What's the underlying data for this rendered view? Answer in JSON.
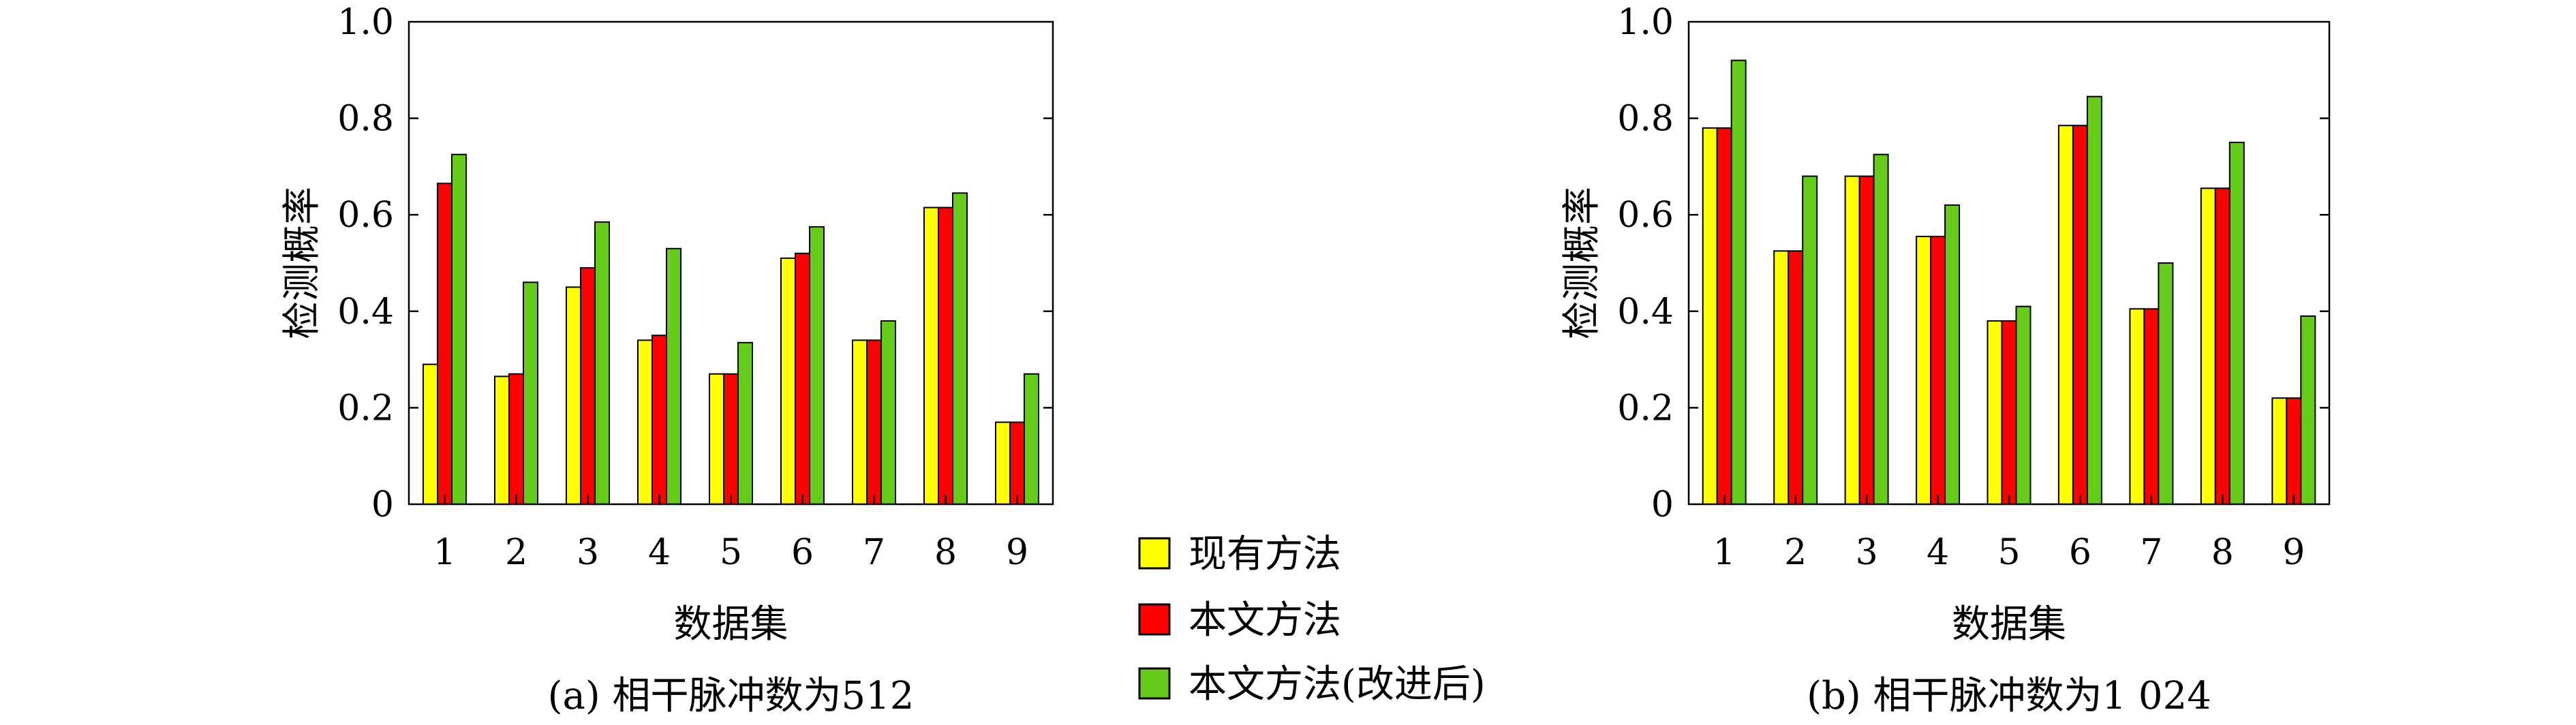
{
  "legend": [
    {
      "label": "现有方法",
      "color": "#ffff00"
    },
    {
      "label": "本文方法",
      "color": "#ff0000"
    },
    {
      "label": "本文方法(改进后)",
      "color": "#66cc1a"
    }
  ],
  "chart_data": [
    {
      "type": "bar",
      "title": "(a) 相干脉冲数为512",
      "xlabel": "数据集",
      "ylabel": "检测概率",
      "categories": [
        "1",
        "2",
        "3",
        "4",
        "5",
        "6",
        "7",
        "8",
        "9"
      ],
      "ylim": [
        0,
        1.0
      ],
      "yticks": [
        "0",
        "0.2",
        "0.4",
        "0.6",
        "0.8",
        "1.0"
      ],
      "series": [
        {
          "name": "现有方法",
          "values": [
            0.29,
            0.265,
            0.45,
            0.34,
            0.27,
            0.51,
            0.34,
            0.615,
            0.17
          ]
        },
        {
          "name": "本文方法",
          "values": [
            0.665,
            0.27,
            0.49,
            0.35,
            0.27,
            0.52,
            0.34,
            0.615,
            0.17
          ]
        },
        {
          "name": "本文方法(改进后)",
          "values": [
            0.725,
            0.46,
            0.585,
            0.53,
            0.335,
            0.575,
            0.38,
            0.645,
            0.27
          ]
        }
      ]
    },
    {
      "type": "bar",
      "title": "(b) 相干脉冲数为1 024",
      "xlabel": "数据集",
      "ylabel": "检测概率",
      "categories": [
        "1",
        "2",
        "3",
        "4",
        "5",
        "6",
        "7",
        "8",
        "9"
      ],
      "ylim": [
        0,
        1.0
      ],
      "yticks": [
        "0",
        "0.2",
        "0.4",
        "0.6",
        "0.8",
        "1.0"
      ],
      "series": [
        {
          "name": "现有方法",
          "values": [
            0.78,
            0.525,
            0.68,
            0.555,
            0.38,
            0.785,
            0.405,
            0.655,
            0.22
          ]
        },
        {
          "name": "本文方法",
          "values": [
            0.78,
            0.525,
            0.68,
            0.555,
            0.38,
            0.785,
            0.405,
            0.655,
            0.22
          ]
        },
        {
          "name": "本文方法(改进后)",
          "values": [
            0.92,
            0.68,
            0.725,
            0.62,
            0.41,
            0.845,
            0.5,
            0.75,
            0.39
          ]
        }
      ]
    }
  ]
}
